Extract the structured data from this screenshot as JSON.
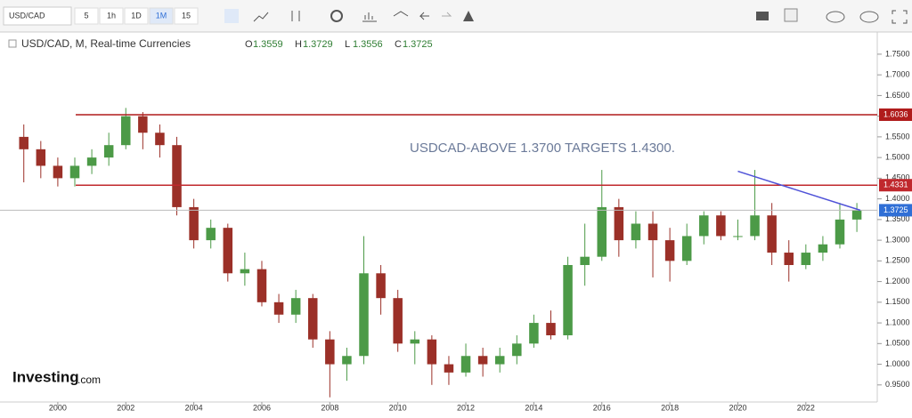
{
  "toolbar": {
    "symbol": "USD/CAD",
    "intervals": [
      "5",
      "1h",
      "1D",
      "1M",
      "15"
    ]
  },
  "header": {
    "title": "USD/CAD, M, Real-time Currencies",
    "ohlc": [
      {
        "label": "O",
        "value": 1.3559
      },
      {
        "label": "H",
        "value": 1.3729
      },
      {
        "label": "L",
        "value": 1.3556
      },
      {
        "label": "C",
        "value": 1.3725
      }
    ]
  },
  "logo": {
    "brand": "Investing",
    "suffix": ".com"
  },
  "chart_data": {
    "type": "candlestick",
    "annotation": "USDCAD-ABOVE 1.3700 TARGETS 1.4300.",
    "x": [
      1999.0,
      1999.5,
      2000.0,
      2000.5,
      2001.0,
      2001.5,
      2002.0,
      2002.5,
      2003.0,
      2003.5,
      2004.0,
      2004.5,
      2005.0,
      2005.5,
      2006.0,
      2006.5,
      2007.0,
      2007.5,
      2008.0,
      2008.5,
      2009.0,
      2009.5,
      2010.0,
      2010.5,
      2011.0,
      2011.5,
      2012.0,
      2012.5,
      2013.0,
      2013.5,
      2014.0,
      2014.5,
      2015.0,
      2015.5,
      2016.0,
      2016.5,
      2017.0,
      2017.5,
      2018.0,
      2018.5,
      2019.0,
      2019.5,
      2020.0,
      2020.5,
      2021.0,
      2021.5,
      2022.0,
      2022.5,
      2023.0,
      2023.5
    ],
    "open": [
      1.55,
      1.52,
      1.48,
      1.45,
      1.48,
      1.5,
      1.53,
      1.6,
      1.56,
      1.53,
      1.38,
      1.3,
      1.33,
      1.22,
      1.23,
      1.15,
      1.12,
      1.16,
      1.06,
      1.0,
      1.02,
      1.22,
      1.16,
      1.05,
      1.06,
      1.0,
      0.98,
      1.02,
      1.0,
      1.02,
      1.05,
      1.1,
      1.07,
      1.24,
      1.26,
      1.38,
      1.3,
      1.34,
      1.3,
      1.25,
      1.31,
      1.36,
      1.31,
      1.31,
      1.36,
      1.27,
      1.24,
      1.27,
      1.29,
      1.35
    ],
    "high": [
      1.58,
      1.54,
      1.5,
      1.5,
      1.52,
      1.56,
      1.62,
      1.61,
      1.58,
      1.55,
      1.4,
      1.35,
      1.34,
      1.27,
      1.25,
      1.17,
      1.18,
      1.17,
      1.08,
      1.04,
      1.31,
      1.24,
      1.18,
      1.08,
      1.07,
      1.02,
      1.05,
      1.04,
      1.04,
      1.07,
      1.12,
      1.13,
      1.26,
      1.34,
      1.47,
      1.4,
      1.37,
      1.37,
      1.33,
      1.34,
      1.37,
      1.37,
      1.35,
      1.47,
      1.39,
      1.3,
      1.29,
      1.31,
      1.39,
      1.39
    ],
    "low": [
      1.44,
      1.45,
      1.43,
      1.43,
      1.46,
      1.48,
      1.52,
      1.52,
      1.5,
      1.36,
      1.28,
      1.28,
      1.2,
      1.19,
      1.14,
      1.1,
      1.1,
      1.04,
      0.92,
      0.96,
      1.0,
      1.12,
      1.03,
      1.0,
      0.95,
      0.95,
      0.97,
      0.97,
      0.98,
      1.0,
      1.04,
      1.06,
      1.06,
      1.19,
      1.25,
      1.26,
      1.28,
      1.21,
      1.2,
      1.24,
      1.29,
      1.3,
      1.3,
      1.3,
      1.24,
      1.2,
      1.23,
      1.25,
      1.28,
      1.32
    ],
    "close": [
      1.52,
      1.48,
      1.45,
      1.48,
      1.5,
      1.53,
      1.6,
      1.56,
      1.53,
      1.38,
      1.3,
      1.33,
      1.22,
      1.23,
      1.15,
      1.12,
      1.16,
      1.06,
      1.0,
      1.02,
      1.22,
      1.16,
      1.05,
      1.06,
      1.0,
      0.98,
      1.02,
      1.0,
      1.02,
      1.05,
      1.1,
      1.07,
      1.24,
      1.26,
      1.38,
      1.3,
      1.34,
      1.3,
      1.25,
      1.31,
      1.36,
      1.31,
      1.31,
      1.36,
      1.27,
      1.24,
      1.27,
      1.29,
      1.35,
      1.3725
    ],
    "up_color": "#4c9a47",
    "down_color": "#9b3028",
    "xlim": [
      1998.3,
      2024.1
    ],
    "ylim": [
      0.913,
      1.795
    ],
    "xticks": [
      2000,
      2002,
      2004,
      2006,
      2008,
      2010,
      2012,
      2014,
      2016,
      2018,
      2020,
      2022
    ],
    "yticks": [
      {
        "value": 0.95,
        "label": "0.9500"
      },
      {
        "value": 1.0,
        "label": "1.0000"
      },
      {
        "value": 1.05,
        "label": "1.0500"
      },
      {
        "value": 1.1,
        "label": "1.1000"
      },
      {
        "value": 1.15,
        "label": "1.1500"
      },
      {
        "value": 1.2,
        "label": "1.2000"
      },
      {
        "value": 1.25,
        "label": "1.2500"
      },
      {
        "value": 1.3,
        "label": "1.3000"
      },
      {
        "value": 1.35,
        "label": "1.3500"
      },
      {
        "value": 1.4,
        "label": "1.4000"
      },
      {
        "value": 1.45,
        "label": "1.4500"
      },
      {
        "value": 1.5,
        "label": "1.5000"
      },
      {
        "value": 1.55,
        "label": "1.5500"
      },
      {
        "value": 1.6,
        "label": "1.6000"
      },
      {
        "value": 1.65,
        "label": "1.6500"
      },
      {
        "value": 1.7,
        "label": "1.7000"
      },
      {
        "value": 1.75,
        "label": "1.7500"
      }
    ],
    "levels": [
      {
        "value": 1.6036,
        "color": "#b01c1c"
      },
      {
        "value": 1.4331,
        "color": "#c0282d"
      }
    ],
    "current": {
      "value": 1.3725,
      "color": "#2f6fd6"
    },
    "trendline": {
      "x": [
        2020.0,
        2023.6
      ],
      "y": [
        1.4668,
        1.3725
      ],
      "color": "#4f52d8"
    }
  }
}
